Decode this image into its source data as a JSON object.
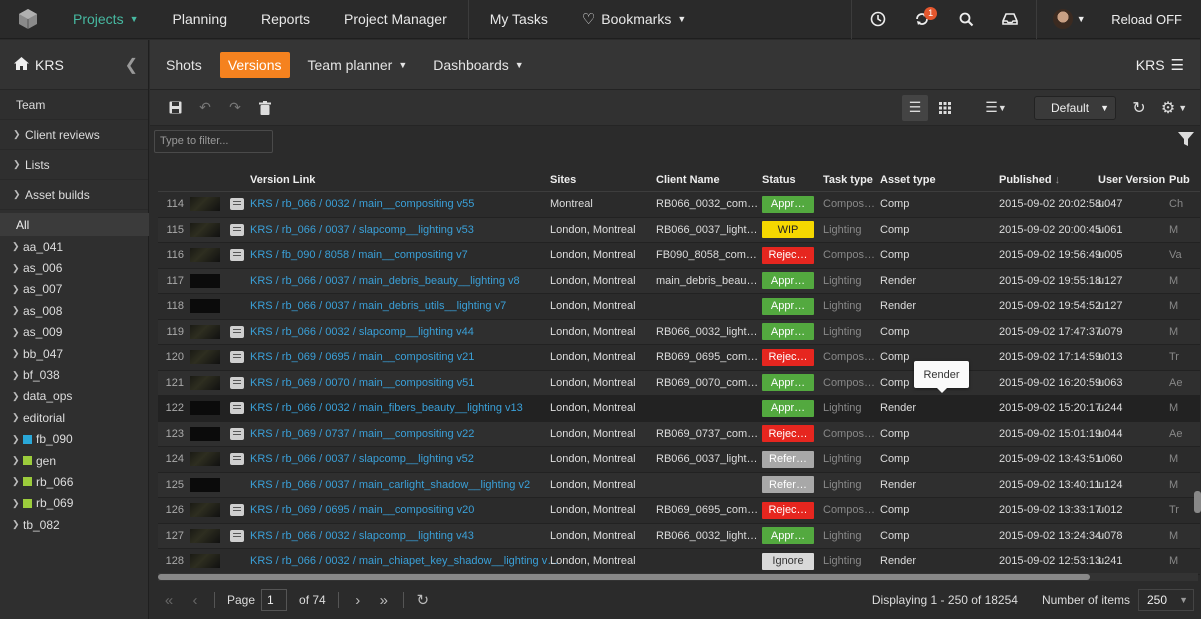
{
  "topnav": {
    "projects": "Projects",
    "planning": "Planning",
    "reports": "Reports",
    "project_manager": "Project Manager",
    "my_tasks": "My Tasks",
    "bookmarks": "Bookmarks",
    "notification_count": "1",
    "reload": "Reload OFF"
  },
  "sidebar": {
    "project": "KRS",
    "team": "Team",
    "client_reviews": "Client reviews",
    "lists": "Lists",
    "asset_builds": "Asset builds",
    "all": "All",
    "tree": [
      {
        "label": "aa_041",
        "color": ""
      },
      {
        "label": "as_006",
        "color": ""
      },
      {
        "label": "as_007",
        "color": ""
      },
      {
        "label": "as_008",
        "color": ""
      },
      {
        "label": "as_009",
        "color": ""
      },
      {
        "label": "bb_047",
        "color": ""
      },
      {
        "label": "bf_038",
        "color": ""
      },
      {
        "label": "data_ops",
        "color": ""
      },
      {
        "label": "editorial",
        "color": ""
      },
      {
        "label": "fb_090",
        "color": "#2aa8d8"
      },
      {
        "label": "gen",
        "color": "#9ccc3c"
      },
      {
        "label": "rb_066",
        "color": "#9ccc3c"
      },
      {
        "label": "rb_069",
        "color": "#9ccc3c"
      },
      {
        "label": "tb_082",
        "color": ""
      }
    ]
  },
  "tabs": {
    "shots": "Shots",
    "versions": "Versions",
    "team_planner": "Team planner",
    "dashboards": "Dashboards",
    "project": "KRS"
  },
  "toolbar": {
    "layout_select": "Default",
    "filter_placeholder": "Type to filter..."
  },
  "grid": {
    "headers": {
      "version_link": "Version Link",
      "sites": "Sites",
      "client_name": "Client Name",
      "status": "Status",
      "task_type": "Task type",
      "asset_type": "Asset type",
      "published": "Published",
      "user_version": "User Version",
      "pub": "Pub"
    },
    "rows": [
      {
        "num": "114",
        "link": "KRS / rb_066 / 0032 / main__compositing v55",
        "sites": "Montreal",
        "client": "RB066_0032_com…",
        "status": "Appr…",
        "status_color": "#53a93f",
        "task": "Compos…",
        "asset": "Comp",
        "published": "2015-09-02 20:02:58",
        "user": "u047",
        "pub": "Ch",
        "thumb": "img",
        "note": true
      },
      {
        "num": "115",
        "link": "KRS / rb_066 / 0037 / slapcomp__lighting v53",
        "sites": "London, Montreal",
        "client": "RB066_0037_light…",
        "status": "WIP",
        "status_color": "#f5d800",
        "status_text_color": "#222",
        "task": "Lighting",
        "asset": "Comp",
        "published": "2015-09-02 20:00:45",
        "user": "u061",
        "pub": "M",
        "thumb": "img",
        "note": true
      },
      {
        "num": "116",
        "link": "KRS / fb_090 / 8058 / main__compositing v7",
        "sites": "London, Montreal",
        "client": "FB090_8058_com…",
        "status": "Rejec…",
        "status_color": "#e6261f",
        "task": "Compos…",
        "asset": "Comp",
        "published": "2015-09-02 19:56:49",
        "user": "u005",
        "pub": "Va",
        "thumb": "img",
        "note": true
      },
      {
        "num": "117",
        "link": "KRS / rb_066 / 0037 / main_debris_beauty__lighting v8",
        "sites": "London, Montreal",
        "client": "main_debris_beau…",
        "status": "Appr…",
        "status_color": "#53a93f",
        "task": "Lighting",
        "asset": "Render",
        "published": "2015-09-02 19:55:18",
        "user": "u127",
        "pub": "M",
        "thumb": "dark",
        "note": false
      },
      {
        "num": "118",
        "link": "KRS / rb_066 / 0037 / main_debris_utils__lighting v7",
        "sites": "London, Montreal",
        "client": "",
        "status": "Appr…",
        "status_color": "#53a93f",
        "task": "Lighting",
        "asset": "Render",
        "published": "2015-09-02 19:54:52",
        "user": "u127",
        "pub": "M",
        "thumb": "dark",
        "note": false
      },
      {
        "num": "119",
        "link": "KRS / rb_066 / 0032 / slapcomp__lighting v44",
        "sites": "London, Montreal",
        "client": "RB066_0032_light…",
        "status": "Appr…",
        "status_color": "#53a93f",
        "task": "Lighting",
        "asset": "Comp",
        "published": "2015-09-02 17:47:37",
        "user": "u079",
        "pub": "M",
        "thumb": "img",
        "note": true
      },
      {
        "num": "120",
        "link": "KRS / rb_069 / 0695 / main__compositing v21",
        "sites": "London, Montreal",
        "client": "RB069_0695_com…",
        "status": "Rejec…",
        "status_color": "#e6261f",
        "task": "Compos…",
        "asset": "Comp",
        "published": "2015-09-02 17:14:59",
        "user": "u013",
        "pub": "Tr",
        "thumb": "img",
        "note": true
      },
      {
        "num": "121",
        "link": "KRS / rb_069 / 0070 / main__compositing v51",
        "sites": "London, Montreal",
        "client": "RB069_0070_com…",
        "status": "Appr…",
        "status_color": "#53a93f",
        "task": "Compos…",
        "asset": "Comp",
        "published": "2015-09-02 16:20:59",
        "user": "u063",
        "pub": "Ae",
        "thumb": "img",
        "note": true
      },
      {
        "num": "122",
        "link": "KRS / rb_066 / 0032 / main_fibers_beauty__lighting v13",
        "sites": "London, Montreal",
        "client": "",
        "status": "Appr…",
        "status_color": "#53a93f",
        "task": "Lighting",
        "asset": "Render",
        "published": "2015-09-02 15:20:17",
        "user": "u244",
        "pub": "M",
        "thumb": "dark",
        "note": true
      },
      {
        "num": "123",
        "link": "KRS / rb_069 / 0737 / main__compositing v22",
        "sites": "London, Montreal",
        "client": "RB069_0737_com…",
        "status": "Rejec…",
        "status_color": "#e6261f",
        "task": "Compos…",
        "asset": "Comp",
        "published": "2015-09-02 15:01:19",
        "user": "u044",
        "pub": "Ae",
        "thumb": "dark",
        "note": true
      },
      {
        "num": "124",
        "link": "KRS / rb_066 / 0037 / slapcomp__lighting v52",
        "sites": "London, Montreal",
        "client": "RB066_0037_light…",
        "status": "Refer…",
        "status_color": "#a8a8a8",
        "task": "Lighting",
        "asset": "Comp",
        "published": "2015-09-02 13:43:51",
        "user": "u060",
        "pub": "M",
        "thumb": "img",
        "note": true
      },
      {
        "num": "125",
        "link": "KRS / rb_066 / 0037 / main_carlight_shadow__lighting v2",
        "sites": "London, Montreal",
        "client": "",
        "status": "Refer…",
        "status_color": "#a8a8a8",
        "task": "Lighting",
        "asset": "Render",
        "published": "2015-09-02 13:40:11",
        "user": "u124",
        "pub": "M",
        "thumb": "dark",
        "note": false
      },
      {
        "num": "126",
        "link": "KRS / rb_069 / 0695 / main__compositing v20",
        "sites": "London, Montreal",
        "client": "RB069_0695_com…",
        "status": "Rejec…",
        "status_color": "#e6261f",
        "task": "Compos…",
        "asset": "Comp",
        "published": "2015-09-02 13:33:17",
        "user": "u012",
        "pub": "Tr",
        "thumb": "img",
        "note": true
      },
      {
        "num": "127",
        "link": "KRS / rb_066 / 0032 / slapcomp__lighting v43",
        "sites": "London, Montreal",
        "client": "RB066_0032_light…",
        "status": "Appr…",
        "status_color": "#53a93f",
        "task": "Lighting",
        "asset": "Comp",
        "published": "2015-09-02 13:24:34",
        "user": "u078",
        "pub": "M",
        "thumb": "img",
        "note": true
      },
      {
        "num": "128",
        "link": "KRS / rb_066 / 0032 / main_chiapet_key_shadow__lighting v…",
        "sites": "London, Montreal",
        "client": "",
        "status": "Ignore",
        "status_color": "#d9d9d9",
        "status_text_color": "#333",
        "task": "Lighting",
        "asset": "Render",
        "published": "2015-09-02 12:53:13",
        "user": "u241",
        "pub": "M",
        "thumb": "img",
        "note": false
      }
    ]
  },
  "tooltip": "Render",
  "pager": {
    "page_label": "Page",
    "page": "1",
    "of_pages": "of 74",
    "displaying": "Displaying 1 - 250 of 18254",
    "items_label": "Number of items",
    "items": "250"
  },
  "colors": {
    "accent": "#f5821f",
    "projects_active": "#47b9a1",
    "link": "#3aa0d8"
  }
}
